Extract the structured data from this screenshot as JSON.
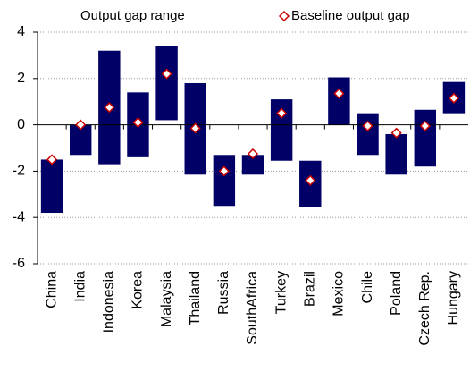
{
  "chart_data": {
    "type": "range-bar",
    "categories": [
      "China",
      "India",
      "Indonesia",
      "Korea",
      "Malaysia",
      "Thailand",
      "Russia",
      "SouthAfrica",
      "Turkey",
      "Brazil",
      "Mexico",
      "Chile",
      "Poland",
      "Czech Rep.",
      "Hungary"
    ],
    "range": {
      "name": "Output gap range",
      "color": "#000066",
      "low": [
        -3.8,
        -1.3,
        -1.7,
        -1.4,
        0.2,
        -2.15,
        -3.5,
        -2.15,
        -1.55,
        -3.55,
        0,
        -1.3,
        -2.15,
        -1.8,
        0.5
      ],
      "high": [
        -1.5,
        0,
        3.2,
        1.4,
        3.4,
        1.8,
        -1.3,
        -1.3,
        1.1,
        -1.55,
        2.05,
        0.5,
        -0.4,
        0.65,
        1.85
      ]
    },
    "baseline": {
      "name": "Baseline output gap",
      "color": "#cc0000",
      "values": [
        -1.5,
        0,
        0.75,
        0.1,
        2.2,
        -0.15,
        -2.0,
        -1.25,
        0.5,
        -2.4,
        1.35,
        -0.05,
        -0.35,
        -0.05,
        1.15
      ]
    },
    "ylim": [
      -6,
      4
    ],
    "yticks": [
      -6,
      -4,
      -2,
      0,
      2,
      4
    ],
    "grid": true
  }
}
